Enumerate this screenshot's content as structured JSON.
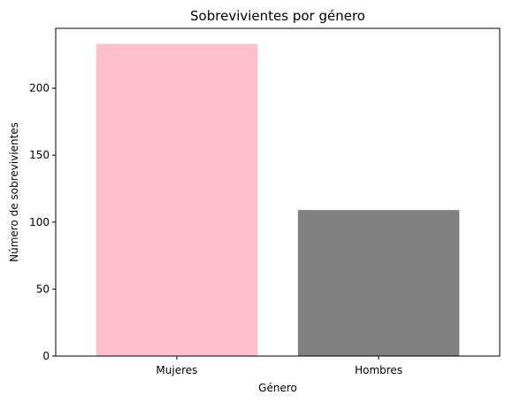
{
  "chart_data": {
    "type": "bar",
    "title": "Sobrevivientes por género",
    "xlabel": "Género",
    "ylabel": "Número de sobrevivientes",
    "categories": [
      "Mujeres",
      "Hombres"
    ],
    "values": [
      233,
      109
    ],
    "colors": [
      "#ffc0cb",
      "#808080"
    ],
    "ylim": [
      0,
      244.65
    ],
    "yticks": [
      0,
      50,
      100,
      150,
      200
    ],
    "grid": false
  }
}
